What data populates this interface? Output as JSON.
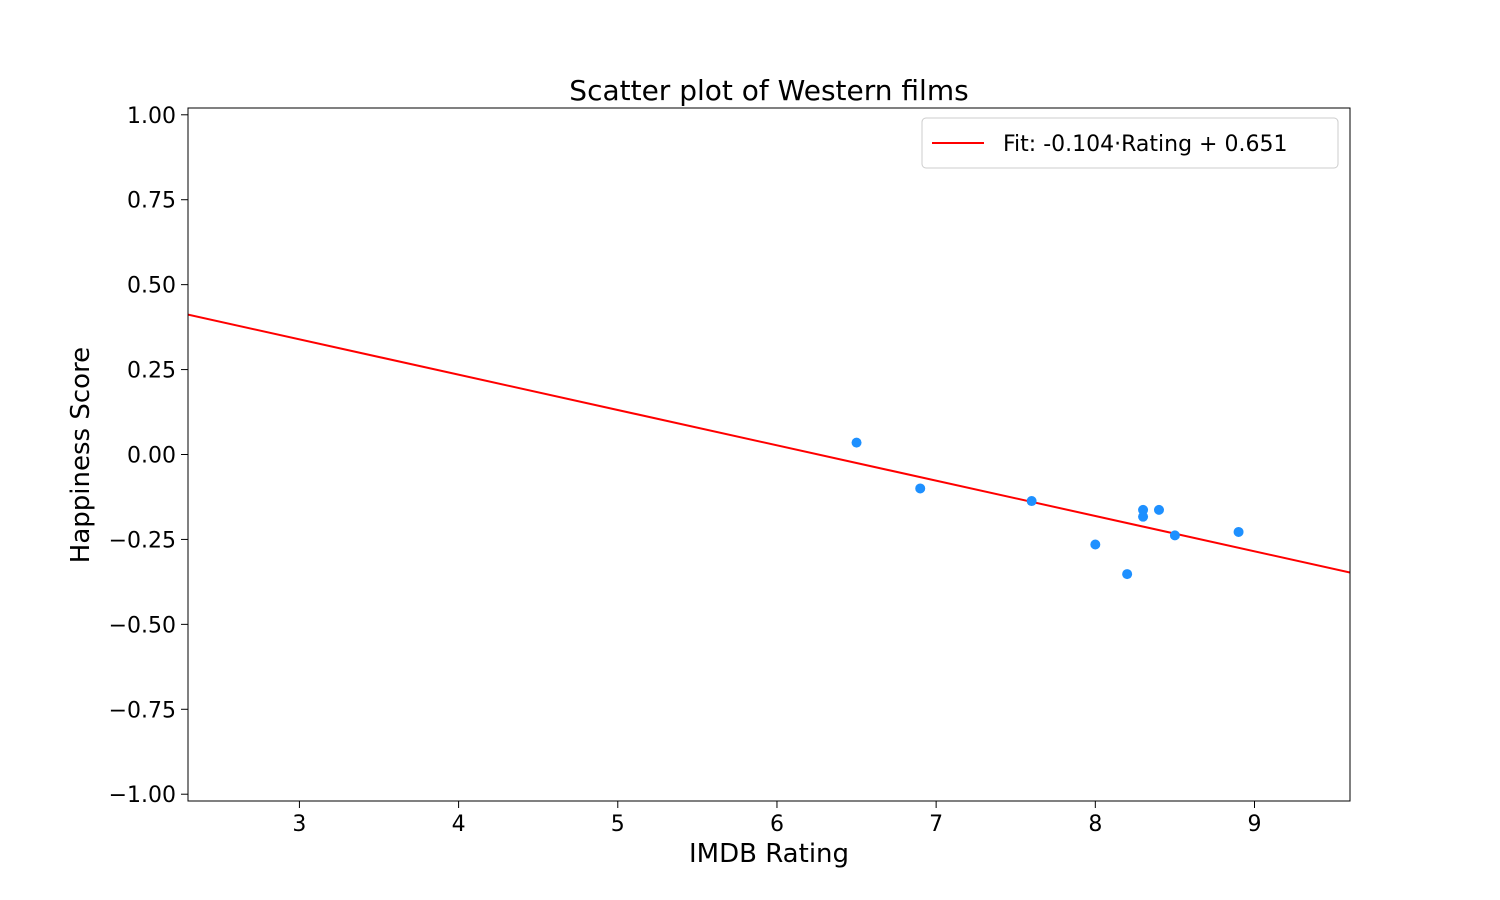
{
  "chart_data": {
    "type": "scatter",
    "title": "Scatter plot of Western films",
    "xlabel": "IMDB Rating",
    "ylabel": "Happiness Score",
    "xlim": [
      2.3,
      9.6
    ],
    "ylim": [
      -1.02,
      1.02
    ],
    "x_ticks": [
      {
        "value": 3,
        "label": "3"
      },
      {
        "value": 4,
        "label": "4"
      },
      {
        "value": 5,
        "label": "5"
      },
      {
        "value": 6,
        "label": "6"
      },
      {
        "value": 7,
        "label": "7"
      },
      {
        "value": 8,
        "label": "8"
      },
      {
        "value": 9,
        "label": "9"
      }
    ],
    "y_ticks": [
      {
        "value": 1.0,
        "label": "1.00"
      },
      {
        "value": 0.75,
        "label": "0.75"
      },
      {
        "value": 0.5,
        "label": "0.50"
      },
      {
        "value": 0.25,
        "label": "0.25"
      },
      {
        "value": 0.0,
        "label": "0.00"
      },
      {
        "value": -0.25,
        "label": "−0.25"
      },
      {
        "value": -0.5,
        "label": "−0.50"
      },
      {
        "value": -0.75,
        "label": "−0.75"
      },
      {
        "value": -1.0,
        "label": "−1.00"
      }
    ],
    "grid": false,
    "legend_position": "top-right",
    "points": {
      "color": "#1e90ff",
      "x": [
        6.5,
        6.9,
        7.6,
        8.0,
        8.2,
        8.3,
        8.3,
        8.4,
        8.5,
        8.9
      ],
      "y": [
        0.035,
        -0.1,
        -0.137,
        -0.265,
        -0.352,
        -0.163,
        -0.183,
        -0.163,
        -0.238,
        -0.228
      ]
    },
    "fit_line": {
      "label": "Fit: -0.104·Rating + 0.651",
      "slope": -0.104,
      "intercept": 0.651,
      "color": "#ff0000"
    }
  }
}
